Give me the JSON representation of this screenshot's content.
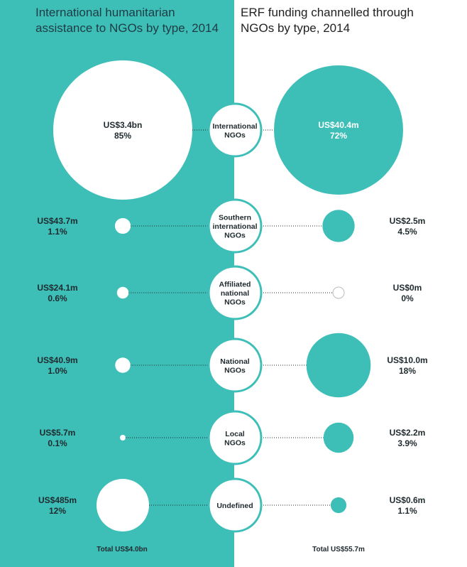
{
  "colors": {
    "teal": "#3dbfb8",
    "white": "#ffffff",
    "text": "#1f2a2e"
  },
  "left_title": "International humanitarian\nassistance to NGOs by type, 2014",
  "right_title": "ERF funding channelled through\nNGOs by type, 2014",
  "chart_data": [
    {
      "type": "bubble",
      "title": "International humanitarian\nassistance to NGOs by type, 2014",
      "categories": [
        "International NGOs",
        "Southern international NGOs",
        "Affiliated national NGOs",
        "National NGOs",
        "Local NGOs",
        "Undefined"
      ],
      "value_labels": [
        "US$3.4bn",
        "US$43.7m",
        "US$24.1m",
        "US$40.9m",
        "US$5.7m",
        "US$485m"
      ],
      "values_usd_millions": [
        3400,
        43.7,
        24.1,
        40.9,
        5.7,
        485
      ],
      "percent_labels": [
        "85%",
        "1.1%",
        "0.6%",
        "1.0%",
        "0.1%",
        "12%"
      ],
      "percent": [
        85,
        1.1,
        0.6,
        1.0,
        0.1,
        12
      ],
      "total_label": "Total US$4.0bn"
    },
    {
      "type": "bubble",
      "title": "ERF funding channelled through\nNGOs by type, 2014",
      "categories": [
        "International NGOs",
        "Southern international NGOs",
        "Affiliated national NGOs",
        "National NGOs",
        "Local NGOs",
        "Undefined"
      ],
      "value_labels": [
        "US$40.4m",
        "US$2.5m",
        "US$0m",
        "US$10.0m",
        "US$2.2m",
        "US$0.6m"
      ],
      "values_usd_millions": [
        40.4,
        2.5,
        0,
        10.0,
        2.2,
        0.6
      ],
      "percent_labels": [
        "72%",
        "4.5%",
        "0%",
        "18%",
        "3.9%",
        "1.1%"
      ],
      "percent": [
        72,
        4.5,
        0,
        18,
        3.9,
        1.1
      ],
      "total_label": "Total  US$55.7m"
    }
  ],
  "center_labels": [
    [
      "International",
      "NGOs"
    ],
    [
      "Southern",
      "international",
      "NGOs"
    ],
    [
      "Affiliated",
      "national",
      "NGOs"
    ],
    [
      "National",
      "NGOs"
    ],
    [
      "Local",
      "NGOs"
    ],
    [
      "Undefined"
    ]
  ]
}
